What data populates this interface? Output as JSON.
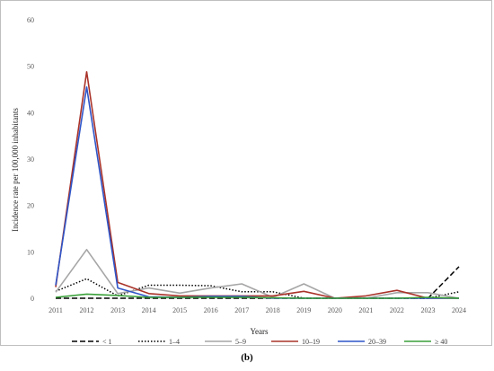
{
  "panel_label": "(b)",
  "chart_data": {
    "type": "line",
    "title": "",
    "xlabel": "Years",
    "ylabel": "Incidence rate per 100,000 inhabitants",
    "ylim": [
      0,
      60
    ],
    "yticks": [
      0,
      10,
      20,
      30,
      40,
      50,
      60
    ],
    "grid": false,
    "legend_position": "bottom",
    "categories": [
      "2011",
      "2012",
      "2013",
      "2014",
      "2015",
      "2016",
      "2017",
      "2018",
      "2019",
      "2020",
      "2021",
      "2022",
      "2023",
      "2024"
    ],
    "series": [
      {
        "name": "< 1",
        "color": "#000000",
        "dash": "long-dash",
        "values": [
          0,
          0,
          0,
          0,
          0,
          0,
          0,
          0,
          0,
          0,
          0,
          0,
          0,
          6.8
        ]
      },
      {
        "name": "1–4",
        "color": "#000000",
        "dash": "dotted",
        "values": [
          1.5,
          4.2,
          0.5,
          2.8,
          2.8,
          2.7,
          1.4,
          1.4,
          0,
          0,
          0,
          0,
          0,
          1.4
        ]
      },
      {
        "name": "5–9",
        "color": "#a6a6a6",
        "dash": "solid",
        "values": [
          1.3,
          10.5,
          1.0,
          2.2,
          1.1,
          2.2,
          3.1,
          0.2,
          3.1,
          0,
          0,
          1.2,
          1.2,
          0
        ]
      },
      {
        "name": "10–19",
        "color": "#a9332a",
        "dash": "solid",
        "values": [
          2.4,
          48.8,
          3.4,
          1.0,
          0.5,
          0.5,
          0.5,
          0.5,
          1.5,
          0,
          0.5,
          1.7,
          0,
          0
        ]
      },
      {
        "name": "20–39",
        "color": "#2f55c8",
        "dash": "solid",
        "values": [
          2.8,
          45.5,
          2.2,
          0.3,
          0.2,
          0.4,
          0.4,
          0,
          0,
          0,
          0,
          0,
          0,
          0
        ]
      },
      {
        "name": "≥ 40",
        "color": "#3aa03a",
        "dash": "solid",
        "values": [
          0.2,
          0.9,
          0.6,
          0.2,
          0.2,
          0.2,
          0.2,
          0.1,
          0,
          0,
          0,
          0,
          0.2,
          0
        ]
      }
    ]
  }
}
